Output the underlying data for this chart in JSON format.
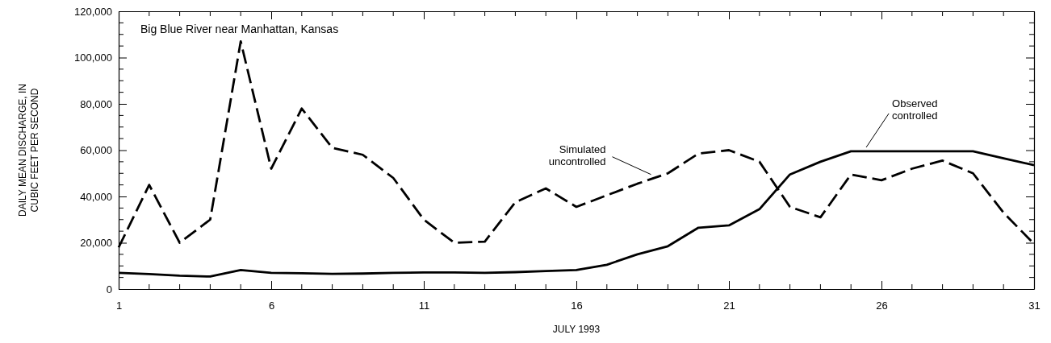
{
  "chart_data": {
    "type": "line",
    "title": "Big Blue River near Manhattan, Kansas",
    "xlabel": "JULY 1993",
    "ylabel": "DAILY MEAN DISCHARGE, IN CUBIC FEET PER SECOND",
    "x": [
      1,
      2,
      3,
      4,
      5,
      6,
      7,
      8,
      9,
      10,
      11,
      12,
      13,
      14,
      15,
      16,
      17,
      18,
      19,
      20,
      21,
      22,
      23,
      24,
      25,
      26,
      27,
      28,
      29,
      30,
      31
    ],
    "series": [
      {
        "name": "Simulated uncontrolled",
        "color": "#000000",
        "line_style": "dashed",
        "values": [
          18000,
          45000,
          20000,
          30000,
          107000,
          52000,
          78000,
          61000,
          58000,
          48000,
          30000,
          20000,
          20500,
          37500,
          43500,
          35500,
          40500,
          45500,
          50000,
          58500,
          60000,
          55000,
          35500,
          31000,
          49500,
          47000,
          52000,
          55500,
          50000,
          33000,
          19500
        ]
      },
      {
        "name": "Observed controlled",
        "color": "#000000",
        "line_style": "solid",
        "values": [
          7000,
          6500,
          5800,
          5400,
          8200,
          7000,
          6800,
          6600,
          6700,
          7000,
          7200,
          7200,
          7000,
          7300,
          7800,
          8200,
          10500,
          15000,
          18500,
          26500,
          27500,
          34500,
          49500,
          55000,
          59500,
          59500,
          59500,
          59500,
          59500,
          56500,
          53500
        ]
      }
    ],
    "xlim": [
      1,
      31
    ],
    "xticks": [
      1,
      6,
      11,
      16,
      21,
      26,
      31
    ],
    "ylim": [
      0,
      120000
    ],
    "yticks": [
      {
        "value": 0,
        "label": "0"
      },
      {
        "value": 20000,
        "label": "20,000"
      },
      {
        "value": 40000,
        "label": "40,000"
      },
      {
        "value": 60000,
        "label": "60,000"
      },
      {
        "value": 80000,
        "label": "80,000"
      },
      {
        "value": 100000,
        "label": "100,000"
      },
      {
        "value": 120000,
        "label": "120,000"
      }
    ],
    "grid": false,
    "marker": "none"
  }
}
